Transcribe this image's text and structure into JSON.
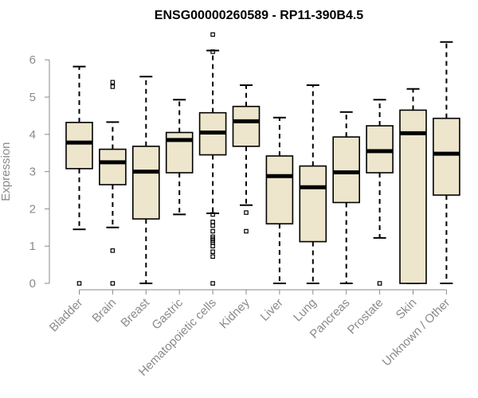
{
  "chart_data": {
    "type": "box",
    "title": "ENSG00000260589 - RP11-390B4.5",
    "xlabel": "",
    "ylabel": "Expression",
    "ylim": [
      0,
      6.9
    ],
    "yticks": [
      0,
      1,
      2,
      3,
      4,
      5,
      6
    ],
    "categories": [
      "Bladder",
      "Brain",
      "Breast",
      "Gastric",
      "Hematopoietic cells",
      "Kidney",
      "Liver",
      "Lung",
      "Pancreas",
      "Prostate",
      "Skin",
      "Unknown / Other"
    ],
    "boxes": [
      {
        "min": 1.45,
        "q1": 3.08,
        "median": 3.78,
        "q3": 4.32,
        "max": 5.82,
        "outliers": [
          0.0
        ]
      },
      {
        "min": 1.5,
        "q1": 2.65,
        "median": 3.25,
        "q3": 3.6,
        "max": 4.33,
        "outliers": [
          5.4,
          5.28,
          0.88,
          0.0
        ]
      },
      {
        "min": 0.0,
        "q1": 1.73,
        "median": 3.0,
        "q3": 3.68,
        "max": 5.55,
        "outliers": []
      },
      {
        "min": 1.85,
        "q1": 2.97,
        "median": 3.85,
        "q3": 4.05,
        "max": 4.93,
        "outliers": []
      },
      {
        "min": 1.88,
        "q1": 3.45,
        "median": 4.05,
        "q3": 4.58,
        "max": 6.25,
        "outliers": [
          6.68,
          6.22,
          1.85,
          1.65,
          1.55,
          1.4,
          1.25,
          1.2,
          1.15,
          1.1,
          1.0,
          0.85,
          0.72,
          0.0
        ]
      },
      {
        "min": 2.1,
        "q1": 3.68,
        "median": 4.35,
        "q3": 4.75,
        "max": 5.32,
        "outliers": [
          1.9,
          1.4
        ]
      },
      {
        "min": 0.0,
        "q1": 1.6,
        "median": 2.88,
        "q3": 3.42,
        "max": 4.45,
        "outliers": []
      },
      {
        "min": 0.0,
        "q1": 1.12,
        "median": 2.58,
        "q3": 3.15,
        "max": 5.32,
        "outliers": []
      },
      {
        "min": 0.0,
        "q1": 2.17,
        "median": 2.98,
        "q3": 3.93,
        "max": 4.6,
        "outliers": []
      },
      {
        "min": 1.22,
        "q1": 2.97,
        "median": 3.55,
        "q3": 4.23,
        "max": 4.93,
        "outliers": [
          0.0
        ]
      },
      {
        "min": 0.0,
        "q1": 0.0,
        "median": 4.03,
        "q3": 4.65,
        "max": 5.22,
        "outliers": []
      },
      {
        "min": 0.0,
        "q1": 2.37,
        "median": 3.48,
        "q3": 4.43,
        "max": 6.48,
        "outliers": []
      }
    ],
    "colors": {
      "box_fill": "#ede6cc",
      "box_stroke": "#000000",
      "axis": "#8a8a8a",
      "text": "#8a8a8a"
    },
    "grid": false
  }
}
